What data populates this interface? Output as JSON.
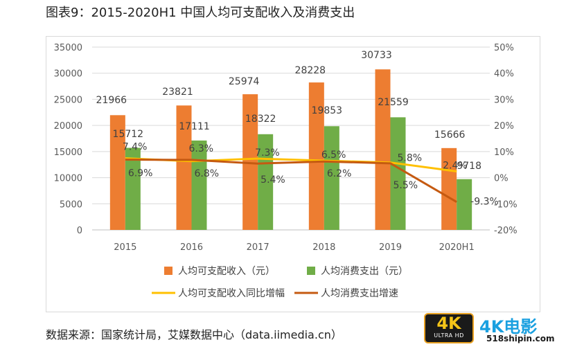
{
  "title": "图表9：2015-2020H1 中国人均可支配收入及消费支出",
  "source": "数据来源：国家统计局，艾媒数据中心（data.iimedia.cn）",
  "watermark": {
    "badge_big": "4K",
    "badge_small": "ULTRA HD",
    "brand": "4K电影",
    "site": "518shipin.com"
  },
  "chart_data": {
    "type": "bar",
    "categories": [
      "2015",
      "2016",
      "2017",
      "2018",
      "2019",
      "2020H1"
    ],
    "y_left": {
      "min": 0,
      "max": 35000,
      "ticks": [
        "0",
        "5000",
        "10000",
        "15000",
        "20000",
        "25000",
        "30000",
        "35000"
      ]
    },
    "y_right": {
      "min": -20,
      "max": 50,
      "ticks": [
        "-20%",
        "-10%",
        "0%",
        "10%",
        "20%",
        "30%",
        "40%",
        "50%"
      ]
    },
    "grid": true,
    "legend_position": "bottom",
    "bar_series": [
      {
        "name": "人均可支配收入（元）",
        "color": "#ed7d31",
        "values": [
          21966,
          23821,
          25974,
          28228,
          30733,
          15666
        ],
        "labels": [
          "21966",
          "23821",
          "25974",
          "28228",
          "30733",
          "15666"
        ]
      },
      {
        "name": "人均消费支出（元）",
        "color": "#70ad47",
        "values": [
          15712,
          17111,
          18322,
          19853,
          21559,
          9718
        ],
        "labels": [
          "15712",
          "17111",
          "18322",
          "19853",
          "21559",
          "9718"
        ]
      }
    ],
    "line_series": [
      {
        "name": "人均可支配收入同比增幅",
        "color": "#ffc000",
        "values": [
          7.4,
          6.3,
          7.3,
          6.5,
          5.8,
          2.4
        ],
        "labels": [
          "7.4%",
          "6.3%",
          "7.3%",
          "6.5%",
          "5.8%",
          "2.4%"
        ]
      },
      {
        "name": "人均消费支出增速",
        "color": "#c55a11",
        "values": [
          6.9,
          6.8,
          5.4,
          6.2,
          5.5,
          -9.3
        ],
        "labels": [
          "6.9%",
          "6.8%",
          "5.4%",
          "6.2%",
          "5.5%",
          "-9.3%"
        ]
      }
    ]
  }
}
